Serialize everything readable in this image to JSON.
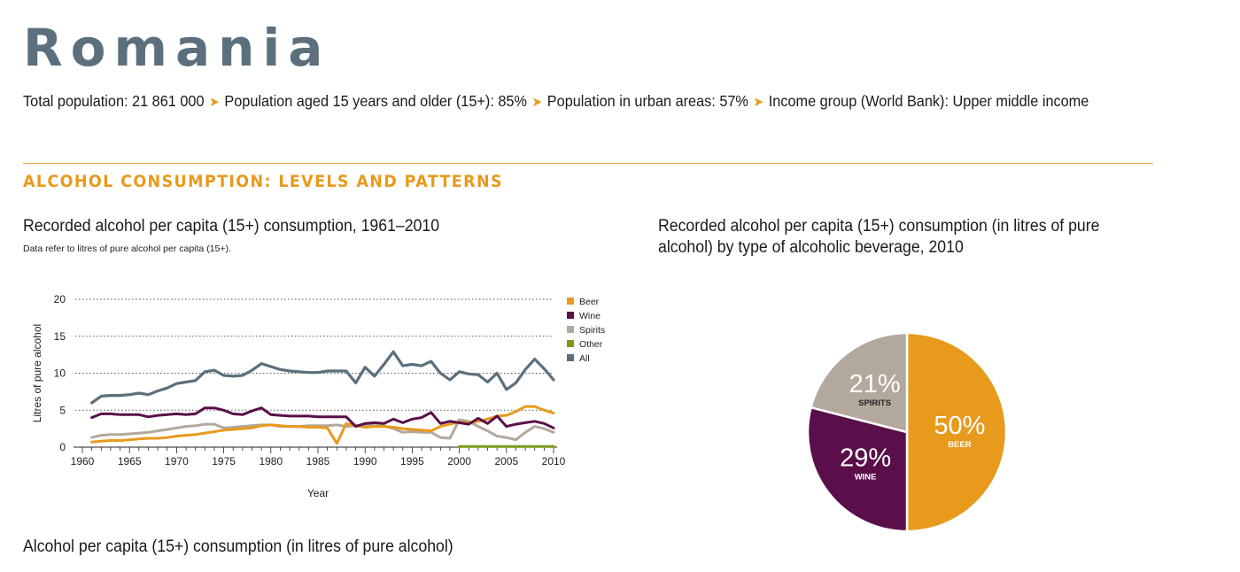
{
  "header": {
    "country": "Romania",
    "facts": [
      "Total population: 21 861 000",
      "Population aged 15 years and older (15+): 85%",
      "Population in urban areas: 57%",
      "Income group (World Bank): Upper middle income"
    ],
    "arrow_glyph": "➤"
  },
  "section_title": "ALCOHOL CONSUMPTION: LEVELS AND PATTERNS",
  "line_chart": {
    "title": "Recorded alcohol per capita (15+) consumption, 1961–2010",
    "note": "Data refer to litres of pure alcohol per capita (15+)."
  },
  "pie_chart": {
    "title_line1": "Recorded alcohol per capita (15+) consumption (in litres of pure",
    "title_line2": "alcohol) by type of alcoholic beverage, 2010"
  },
  "bottom_title": "Alcohol per capita (15+) consumption (in litres of pure alcohol)",
  "colors": {
    "beer": "#e89a1c",
    "wine": "#5a0f4a",
    "spirits": "#b3a89c",
    "other": "#7a9a1a",
    "all": "#5b6f7c",
    "accent": "#e89a1c"
  },
  "chart_data": [
    {
      "type": "line",
      "xlabel": "Year",
      "ylabel": "Litres of pure alcohol",
      "xlim": [
        1960,
        2010
      ],
      "ylim": [
        0,
        20
      ],
      "xticks": [
        1960,
        1965,
        1970,
        1975,
        1980,
        1985,
        1990,
        1995,
        2000,
        2005,
        2010
      ],
      "yticks": [
        0,
        5,
        10,
        15,
        20
      ],
      "grid": "horizontal dotted",
      "legend_position": "top-right",
      "x": [
        1961,
        1962,
        1963,
        1964,
        1965,
        1966,
        1967,
        1968,
        1969,
        1970,
        1971,
        1972,
        1973,
        1974,
        1975,
        1976,
        1977,
        1978,
        1979,
        1980,
        1981,
        1982,
        1983,
        1984,
        1985,
        1986,
        1987,
        1988,
        1989,
        1990,
        1991,
        1992,
        1993,
        1994,
        1995,
        1996,
        1997,
        1998,
        1999,
        2000,
        2001,
        2002,
        2003,
        2004,
        2005,
        2006,
        2007,
        2008,
        2009,
        2010
      ],
      "series": [
        {
          "name": "Beer",
          "color_key": "beer",
          "values": [
            0.7,
            0.8,
            0.9,
            0.9,
            1.0,
            1.1,
            1.2,
            1.2,
            1.3,
            1.5,
            1.6,
            1.7,
            1.9,
            2.1,
            2.3,
            2.4,
            2.5,
            2.6,
            2.9,
            3.0,
            2.9,
            2.8,
            2.8,
            2.7,
            2.7,
            2.6,
            0.5,
            3.2,
            2.9,
            2.7,
            2.8,
            2.8,
            2.7,
            2.5,
            2.4,
            2.3,
            2.2,
            2.8,
            3.1,
            3.4,
            3.3,
            3.5,
            3.8,
            4.2,
            4.3,
            4.8,
            5.5,
            5.5,
            5.0,
            4.6
          ]
        },
        {
          "name": "Wine",
          "color_key": "wine",
          "values": [
            4.0,
            4.5,
            4.5,
            4.4,
            4.4,
            4.4,
            4.1,
            4.3,
            4.4,
            4.5,
            4.4,
            4.5,
            5.3,
            5.3,
            5.0,
            4.5,
            4.4,
            4.9,
            5.3,
            4.4,
            4.3,
            4.2,
            4.2,
            4.2,
            4.1,
            4.1,
            4.1,
            4.1,
            2.8,
            3.2,
            3.3,
            3.2,
            3.8,
            3.3,
            3.8,
            4.0,
            4.7,
            3.2,
            3.5,
            3.3,
            3.1,
            3.9,
            3.2,
            4.2,
            2.8,
            3.1,
            3.3,
            3.5,
            3.2,
            2.6
          ]
        },
        {
          "name": "Spirits",
          "color_key": "spirits",
          "values": [
            1.3,
            1.6,
            1.7,
            1.7,
            1.8,
            1.9,
            2.0,
            2.2,
            2.4,
            2.6,
            2.8,
            2.9,
            3.1,
            3.1,
            2.6,
            2.7,
            2.8,
            2.9,
            3.0,
            3.0,
            2.8,
            2.8,
            2.8,
            2.9,
            2.9,
            2.9,
            3.0,
            2.8,
            2.9,
            3.0,
            2.9,
            2.9,
            2.5,
            2.0,
            2.1,
            2.0,
            2.0,
            1.3,
            1.2,
            3.7,
            3.5,
            2.8,
            2.2,
            1.5,
            1.3,
            1.0,
            2.0,
            2.8,
            2.5,
            2.0
          ]
        },
        {
          "name": "Other",
          "color_key": "other",
          "values": [
            0,
            0,
            0,
            0,
            0,
            0,
            0,
            0,
            0,
            0,
            0,
            0,
            0,
            0,
            0,
            0,
            0,
            0,
            0,
            0,
            0,
            0,
            0,
            0,
            0,
            0,
            0,
            0,
            0,
            0,
            0,
            0,
            0,
            0,
            0,
            0,
            0,
            0,
            0,
            0.1,
            0.1,
            0.1,
            0.1,
            0.1,
            0.1,
            0.1,
            0.1,
            0.1,
            0.1,
            0.1
          ]
        },
        {
          "name": "All",
          "color_key": "all",
          "values": [
            6.0,
            6.9,
            7.0,
            7.0,
            7.1,
            7.3,
            7.1,
            7.6,
            8.0,
            8.6,
            8.8,
            9.0,
            10.2,
            10.4,
            9.7,
            9.6,
            9.7,
            10.4,
            11.3,
            10.9,
            10.5,
            10.3,
            10.2,
            10.1,
            10.1,
            10.3,
            10.3,
            10.3,
            8.7,
            10.8,
            9.6,
            11.2,
            12.9,
            11.0,
            11.2,
            11.0,
            11.6,
            10.0,
            9.1,
            10.2,
            9.9,
            9.8,
            8.8,
            10.0,
            7.8,
            8.7,
            10.5,
            11.9,
            10.6,
            9.1
          ]
        }
      ]
    },
    {
      "type": "pie",
      "slices": [
        {
          "label": "BEER",
          "value": 50,
          "display": "50%",
          "color_key": "beer"
        },
        {
          "label": "WINE",
          "value": 29,
          "display": "29%",
          "color_key": "wine"
        },
        {
          "label": "SPIRITS",
          "value": 21,
          "display": "21%",
          "color_key": "spirits"
        }
      ]
    }
  ]
}
